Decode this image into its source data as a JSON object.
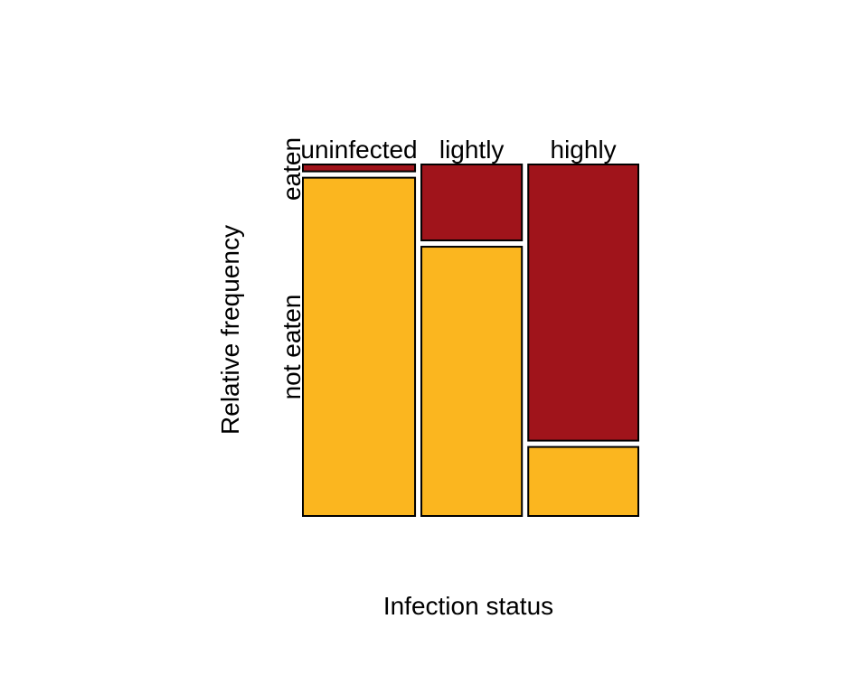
{
  "chart_data": {
    "type": "mosaic",
    "xlabel": "Infection status",
    "ylabel": "Relative frequency",
    "categories": [
      "uninfected",
      "lightly",
      "highly"
    ],
    "column_widths": [
      0.3475,
      0.3114,
      0.3411
    ],
    "rows": [
      "eaten",
      "not eaten"
    ],
    "row_colors": [
      "#A0141B",
      "#FBB61F"
    ],
    "proportions": {
      "eaten": [
        0.02,
        0.22,
        0.8
      ],
      "not eaten": [
        0.98,
        0.78,
        0.2
      ]
    },
    "legend": "none",
    "grid": false
  }
}
